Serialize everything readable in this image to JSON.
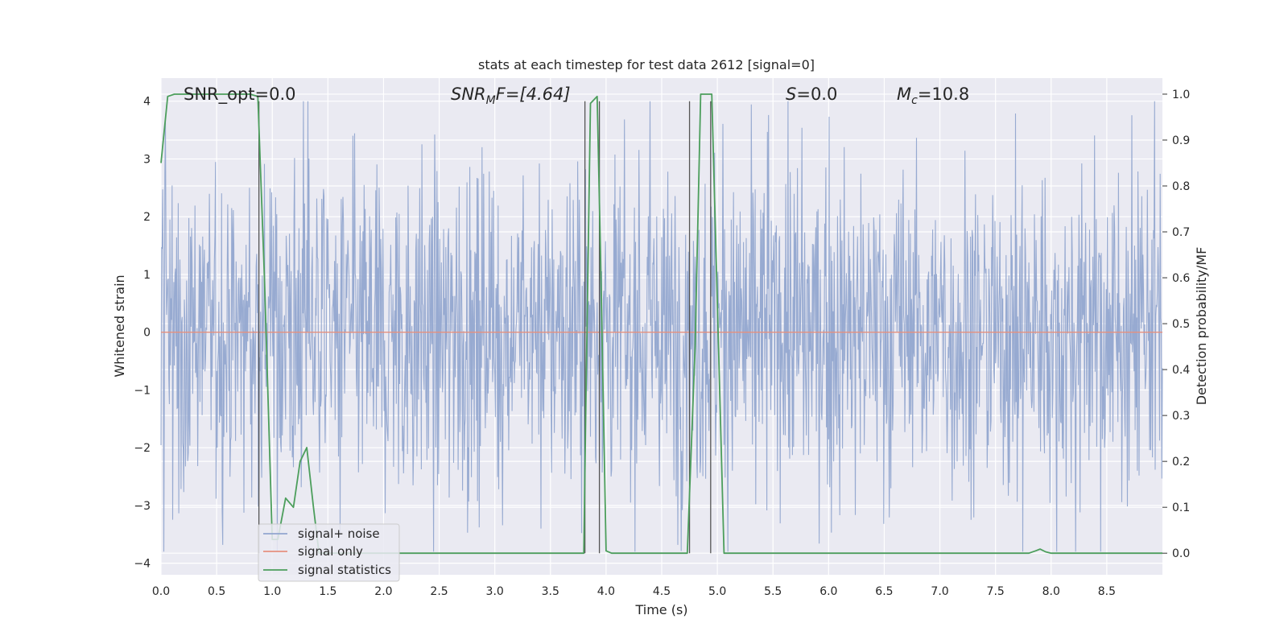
{
  "chart_data": {
    "type": "line",
    "title": "stats at each timestep for test data 2612 [signal=0]",
    "xlabel": "Time (s)",
    "ylabel": "Whitened strain",
    "ylabel_right": "Detection probability/MF",
    "xlim": [
      0.0,
      9.0
    ],
    "ylim": [
      -4.2,
      4.4
    ],
    "ylim_right": [
      -0.047,
      1.035
    ],
    "x_ticks": [
      "0.0",
      "0.5",
      "1.0",
      "1.5",
      "2.0",
      "2.5",
      "3.0",
      "3.5",
      "4.0",
      "4.5",
      "5.0",
      "5.5",
      "6.0",
      "6.5",
      "7.0",
      "7.5",
      "8.0",
      "8.5"
    ],
    "y_ticks": [
      "4",
      "3",
      "2",
      "1",
      "0",
      "−1",
      "−2",
      "−3",
      "−4"
    ],
    "y_ticks_right": [
      "1.0",
      "0.9",
      "0.8",
      "0.7",
      "0.6",
      "0.5",
      "0.4",
      "0.3",
      "0.2",
      "0.1",
      "0.0"
    ],
    "grid": true,
    "annotations": [
      {
        "label": "SNR_opt=0.0"
      },
      {
        "label": "SNR",
        "sub": "M",
        "suffix": "F=[4.64]"
      },
      {
        "label": "S",
        "suffix": "=0.0"
      },
      {
        "label": "M",
        "sub": "c",
        "suffix": "=10.8"
      }
    ],
    "vertical_lines_x": [
      0.88,
      3.81,
      3.94,
      4.75,
      4.94
    ],
    "legend": {
      "position": "bottom-left",
      "entries": [
        "signal+ noise",
        "signal only",
        "signal statistics"
      ]
    },
    "series": [
      {
        "name": "signal+ noise",
        "color": "#92a6cf",
        "note": "dense whitened noise trace, roughly ±1.5 with spikes to about ±3.8",
        "amplitude": 1.5
      },
      {
        "name": "signal only",
        "color": "#e5917f",
        "x": [
          0.0,
          9.0
        ],
        "y": [
          0.0,
          0.0
        ]
      },
      {
        "name": "signal statistics",
        "color": "#4c9e5c",
        "x": [
          0.0,
          0.06,
          0.12,
          0.2,
          0.4,
          0.6,
          0.8,
          0.87,
          0.93,
          1.0,
          1.05,
          1.12,
          1.19,
          1.25,
          1.31,
          1.37,
          1.42,
          1.5,
          2.0,
          3.0,
          3.8,
          3.82,
          3.86,
          3.92,
          3.95,
          4.0,
          4.05,
          4.5,
          4.73,
          4.8,
          4.85,
          4.95,
          5.06,
          5.2,
          6.0,
          7.0,
          7.8,
          7.86,
          7.9,
          7.95,
          8.0,
          8.5,
          9.0
        ],
        "y": [
          0.85,
          0.995,
          1.0,
          1.0,
          1.0,
          1.0,
          1.0,
          0.995,
          0.6,
          0.03,
          0.03,
          0.12,
          0.1,
          0.2,
          0.23,
          0.1,
          0.0,
          0.0,
          0.0,
          0.0,
          0.0,
          0.35,
          0.98,
          0.995,
          0.65,
          0.005,
          0.0,
          0.0,
          0.0,
          0.45,
          1.0,
          1.0,
          0.0,
          0.0,
          0.0,
          0.0,
          0.0,
          0.005,
          0.009,
          0.003,
          0.0,
          0.0,
          0.0
        ]
      }
    ]
  }
}
